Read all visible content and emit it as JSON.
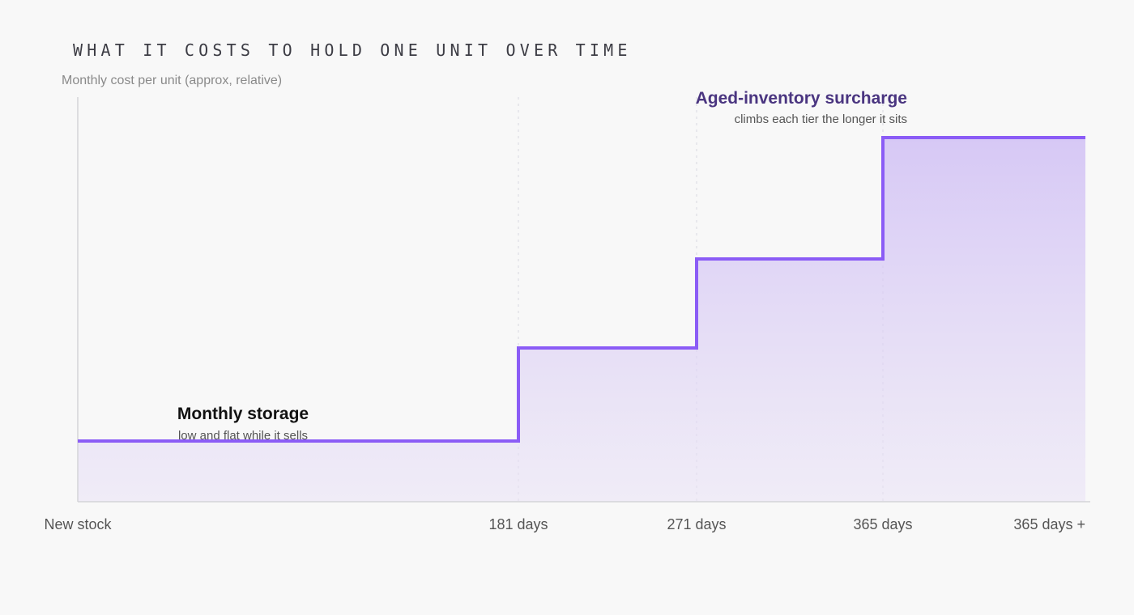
{
  "title": "WHAT IT COSTS TO HOLD ONE UNIT OVER TIME",
  "y_axis_label": "Monthly cost per unit (approx, relative)",
  "chart_data": {
    "type": "area",
    "step": true,
    "title": "WHAT IT COSTS TO HOLD ONE UNIT OVER TIME",
    "xlabel": "",
    "ylabel": "Monthly cost per unit (approx, relative)",
    "ylim": [
      0,
      1
    ],
    "grid": "vertical dashed at tier boundaries",
    "line_color": "#8b5cf6",
    "fill_color": "#c9b6f2",
    "categories": [
      "New stock",
      "181 days",
      "271 days",
      "365 days",
      "365 days +"
    ],
    "series": [
      {
        "values": [
          0.15,
          0.38,
          0.6,
          0.9,
          0.9
        ]
      }
    ],
    "annotations": [
      {
        "title": "Monthly storage",
        "subtitle": "low and flat while it sells",
        "anchor": "New stock"
      },
      {
        "title": "Aged-inventory surcharge",
        "subtitle": "climbs each tier the longer it sits",
        "anchor": "365 days"
      }
    ]
  }
}
